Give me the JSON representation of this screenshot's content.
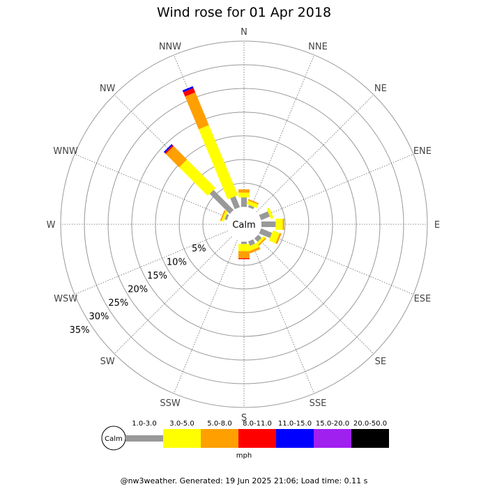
{
  "chart_data": {
    "type": "windrose",
    "title": "Wind rose for 01 Apr 2018",
    "directions": [
      "N",
      "NNE",
      "NE",
      "ENE",
      "E",
      "ESE",
      "SE",
      "SSE",
      "S",
      "SSW",
      "SW",
      "WSW",
      "W",
      "WNW",
      "NW",
      "NNW"
    ],
    "ring_labels": [
      "5%",
      "10%",
      "15%",
      "20%",
      "25%",
      "30%",
      "35%"
    ],
    "ring_max_percent": 35,
    "calm_label": "Calm",
    "units_label": "mph",
    "bins": [
      {
        "label": "1.0-3.0",
        "color": "#999999"
      },
      {
        "label": "3.0-5.0",
        "color": "#ffff00"
      },
      {
        "label": "5.0-8.0",
        "color": "#ff9f00"
      },
      {
        "label": "8.0-11.0",
        "color": "#ff0000"
      },
      {
        "label": "11.0-15.0",
        "color": "#0000ff"
      },
      {
        "label": "15.0-20.0",
        "color": "#a020f0"
      },
      {
        "label": "20.0-50.0",
        "color": "#000000"
      }
    ],
    "values": {
      "N": [
        2.0,
        1.0,
        0.7,
        0,
        0,
        0,
        0
      ],
      "NNE": [
        0.5,
        0.8,
        0.3,
        0,
        0,
        0,
        0
      ],
      "NE": [
        0,
        0,
        0,
        0,
        0,
        0,
        0
      ],
      "ENE": [
        2.0,
        0.6,
        0,
        0,
        0,
        0,
        0
      ],
      "E": [
        3.0,
        1.5,
        0.3,
        0,
        0,
        0,
        0
      ],
      "ESE": [
        2.5,
        1.5,
        0.4,
        0,
        0,
        0,
        0
      ],
      "SE": [
        1.0,
        0.5,
        0.3,
        0,
        0,
        0,
        0
      ],
      "SSE": [
        1.0,
        1.0,
        0.5,
        0,
        0,
        0,
        0
      ],
      "S": [
        0.5,
        1.5,
        1.5,
        0.2,
        0,
        0,
        0
      ],
      "SSW": [
        0,
        0,
        0,
        0,
        0,
        0,
        0
      ],
      "SW": [
        0,
        0,
        0,
        0,
        0,
        0,
        0
      ],
      "WSW": [
        0,
        0,
        0,
        0,
        0,
        0,
        0
      ],
      "W": [
        0,
        0,
        0,
        0,
        0,
        0,
        0
      ],
      "WNW": [
        0.5,
        0.5,
        0.3,
        0,
        0,
        0,
        0
      ],
      "NW": [
        6.0,
        8.5,
        4.0,
        0.3,
        0.3,
        0,
        0
      ],
      "NNW": [
        2.5,
        16.0,
        7.5,
        1.0,
        0.4,
        0,
        0
      ]
    }
  },
  "footer": "@nw3weather. Generated: 19 Jun 2025 21:06; Load time: 0.11 s"
}
